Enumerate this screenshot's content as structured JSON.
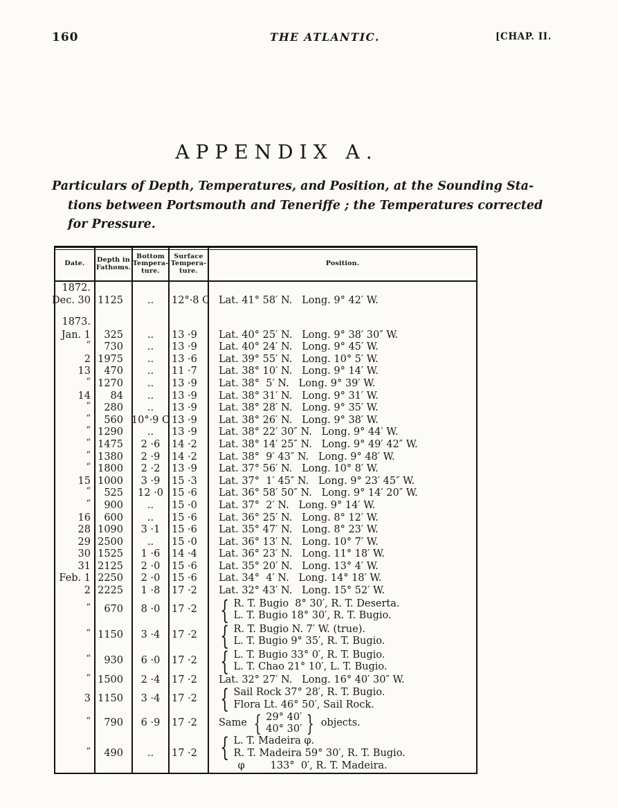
{
  "colors": {
    "ink": "#1b1814",
    "paper": "#fcfbf8"
  },
  "page": {
    "page_number": "160",
    "running_title": "THE ATLANTIC.",
    "chapter_mark": "[CHAP. II.",
    "heading": "APPENDIX A.",
    "subtitle_lines": [
      "Particulars of Depth, Temperatures, and Position, at the Sounding Sta-",
      "tions between Portsmouth and Teneriffe ; the Temperatures corrected",
      "for Pressure."
    ]
  },
  "table": {
    "headers": {
      "date": "Date.",
      "depth": [
        "Depth in",
        "Fathoms."
      ],
      "bottom": [
        "Bottom",
        "Tempera-",
        "ture."
      ],
      "surface": [
        "Surface",
        "Tempera-",
        "ture."
      ],
      "position": "Position."
    },
    "rows": [
      {
        "t": "year",
        "date": "1872."
      },
      {
        "t": "r",
        "date": "Dec. 30",
        "depth": "1125",
        "bot": "..",
        "surf": "12°·8 C",
        "pos": [
          "Lat. 41° 58′ N.   Long. 9° 42′ W."
        ]
      },
      {
        "t": "gap"
      },
      {
        "t": "year",
        "date": "1873."
      },
      {
        "t": "r",
        "date": "Jan. 1",
        "depth": "325",
        "bot": "..",
        "surf": "13 ·9",
        "pos": [
          "Lat. 40° 25′ N.   Long. 9° 38′ 30″ W."
        ]
      },
      {
        "t": "r",
        "date": "“",
        "depth": "730",
        "bot": "..",
        "surf": "13 ·9",
        "pos": [
          "Lat. 40° 24′ N.   Long. 9° 45′ W."
        ]
      },
      {
        "t": "r",
        "date": "2",
        "depth": "1975",
        "bot": "..",
        "surf": "13 ·6",
        "pos": [
          "Lat. 39° 55′ N.   Long. 10° 5′ W."
        ]
      },
      {
        "t": "r",
        "date": "13",
        "depth": "470",
        "bot": "..",
        "surf": "11 ·7",
        "pos": [
          "Lat. 38° 10′ N.   Long. 9° 14′ W."
        ]
      },
      {
        "t": "r",
        "date": "“",
        "depth": "1270",
        "bot": "..",
        "surf": "13 ·9",
        "pos": [
          "Lat. 38°  5′ N.   Long. 9° 39′ W."
        ]
      },
      {
        "t": "r",
        "date": "14",
        "depth": "84",
        "bot": "..",
        "surf": "13 ·9",
        "pos": [
          "Lat. 38° 31′ N.   Long. 9° 31′ W."
        ]
      },
      {
        "t": "r",
        "date": "“",
        "depth": "280",
        "bot": "..",
        "surf": "13 ·9",
        "pos": [
          "Lat. 38° 28′ N.   Long. 9° 35′ W."
        ]
      },
      {
        "t": "r",
        "date": "“",
        "depth": "560",
        "bot": "10°·9 C",
        "surf": "13 ·9",
        "pos": [
          "Lat. 38° 26′ N.   Long. 9° 38′ W."
        ]
      },
      {
        "t": "r",
        "date": "“",
        "depth": "1290",
        "bot": "..",
        "surf": "13 ·9",
        "pos": [
          "Lat. 38° 22′ 30″ N.   Long. 9° 44′ W."
        ]
      },
      {
        "t": "r",
        "date": "“",
        "depth": "1475",
        "bot": "2 ·6",
        "surf": "14 ·2",
        "pos": [
          "Lat. 38° 14′ 25″ N.   Long. 9° 49′ 42″ W."
        ]
      },
      {
        "t": "r",
        "date": "“",
        "depth": "1380",
        "bot": "2 ·9",
        "surf": "14 ·2",
        "pos": [
          "Lat. 38°  9′ 43″ N.   Long. 9° 48′ W."
        ]
      },
      {
        "t": "r",
        "date": "“",
        "depth": "1800",
        "bot": "2 ·2",
        "surf": "13 ·9",
        "pos": [
          "Lat. 37° 56′ N.   Long. 10° 8′ W."
        ]
      },
      {
        "t": "r",
        "date": "15",
        "depth": "1000",
        "bot": "3 ·9",
        "surf": "15 ·3",
        "pos": [
          "Lat. 37°  1′ 45″ N.   Long. 9° 23′ 45″ W."
        ]
      },
      {
        "t": "r",
        "date": "“",
        "depth": "525",
        "bot": "12 ·0",
        "surf": "15 ·6",
        "pos": [
          "Lat. 36° 58′ 50″ N.   Long. 9° 14′ 20″ W."
        ]
      },
      {
        "t": "r",
        "date": "“",
        "depth": "900",
        "bot": "..",
        "surf": "15 ·0",
        "pos": [
          "Lat. 37°  2′ N.   Long. 9° 14′ W."
        ]
      },
      {
        "t": "r",
        "date": "16",
        "depth": "600",
        "bot": "..",
        "surf": "15 ·6",
        "pos": [
          "Lat. 36° 25′ N.   Long. 8° 12′ W."
        ]
      },
      {
        "t": "r",
        "date": "28",
        "depth": "1090",
        "bot": "3 ·1",
        "surf": "15 ·6",
        "pos": [
          "Lat. 35° 47′ N.   Long. 8° 23′ W."
        ]
      },
      {
        "t": "r",
        "date": "29",
        "depth": "2500",
        "bot": "..",
        "surf": "15 ·0",
        "pos": [
          "Lat. 36° 13′ N.   Long. 10° 7′ W."
        ]
      },
      {
        "t": "r",
        "date": "30",
        "depth": "1525",
        "bot": "1 ·6",
        "surf": "14 ·4",
        "pos": [
          "Lat. 36° 23′ N.   Long. 11° 18′ W."
        ]
      },
      {
        "t": "r",
        "date": "31",
        "depth": "2125",
        "bot": "2 ·0",
        "surf": "15 ·6",
        "pos": [
          "Lat. 35° 20′ N.   Long. 13° 4′ W."
        ]
      },
      {
        "t": "r",
        "date": "Feb. 1",
        "depth": "2250",
        "bot": "2 ·0",
        "surf": "15 ·6",
        "pos": [
          "Lat. 34°  4′ N.   Long. 14° 18′ W."
        ]
      },
      {
        "t": "r",
        "date": "2",
        "depth": "2225",
        "bot": "1 ·8",
        "surf": "17 ·2",
        "pos": [
          "Lat. 32° 43′ N.   Long. 15° 52′ W."
        ]
      },
      {
        "t": "r",
        "date": "“",
        "depth": "670",
        "bot": "8 ·0",
        "surf": "17 ·2",
        "brace": true,
        "pos": [
          "R. T. Bugio  8° 30′, R. T. Deserta.",
          "L. T. Bugio 18° 30′, R. T. Bugio."
        ]
      },
      {
        "t": "r",
        "date": "“",
        "depth": "1150",
        "bot": "3 ·4",
        "surf": "17 ·2",
        "brace": true,
        "pos": [
          "R. T. Bugio N. 7′ W. (true).",
          "L. T. Bugio 9° 35′, R. T. Bugio."
        ]
      },
      {
        "t": "r",
        "date": "“",
        "depth": "930",
        "bot": "6 ·0",
        "surf": "17 ·2",
        "brace": true,
        "pos": [
          "L. T. Bugio 33° 0′, R. T. Bugio.",
          "L. T. Chao 21° 10′, L. T. Bugio."
        ]
      },
      {
        "t": "r",
        "date": "“",
        "depth": "1500",
        "bot": "2 ·4",
        "surf": "17 ·2",
        "pos": [
          "Lat. 32° 27′ N.   Long. 16° 40′ 30″ W."
        ]
      },
      {
        "t": "r",
        "date": "3",
        "depth": "1150",
        "bot": "3 ·4",
        "surf": "17 ·2",
        "brace": true,
        "pos": [
          "Sail Rock 37° 28′, R. T. Bugio.",
          "Flora Lt. 46° 50′, Sail Rock."
        ]
      },
      {
        "t": "same",
        "date": "“",
        "depth": "790",
        "bot": "6 ·9",
        "surf": "17 ·2",
        "same": {
          "before": "Same",
          "stack": [
            "29° 40′",
            "40° 30′"
          ],
          "after": "objects."
        }
      },
      {
        "t": "r",
        "date": "“",
        "depth": "490",
        "bot": "..",
        "surf": "17 ·2",
        "brace": true,
        "pos": [
          "L. T. Madeira φ.",
          "R. T. Madeira 59° 30′, R. T. Bugio."
        ],
        "extra": "      φ        133°  0′, R. T. Madeira."
      }
    ]
  }
}
